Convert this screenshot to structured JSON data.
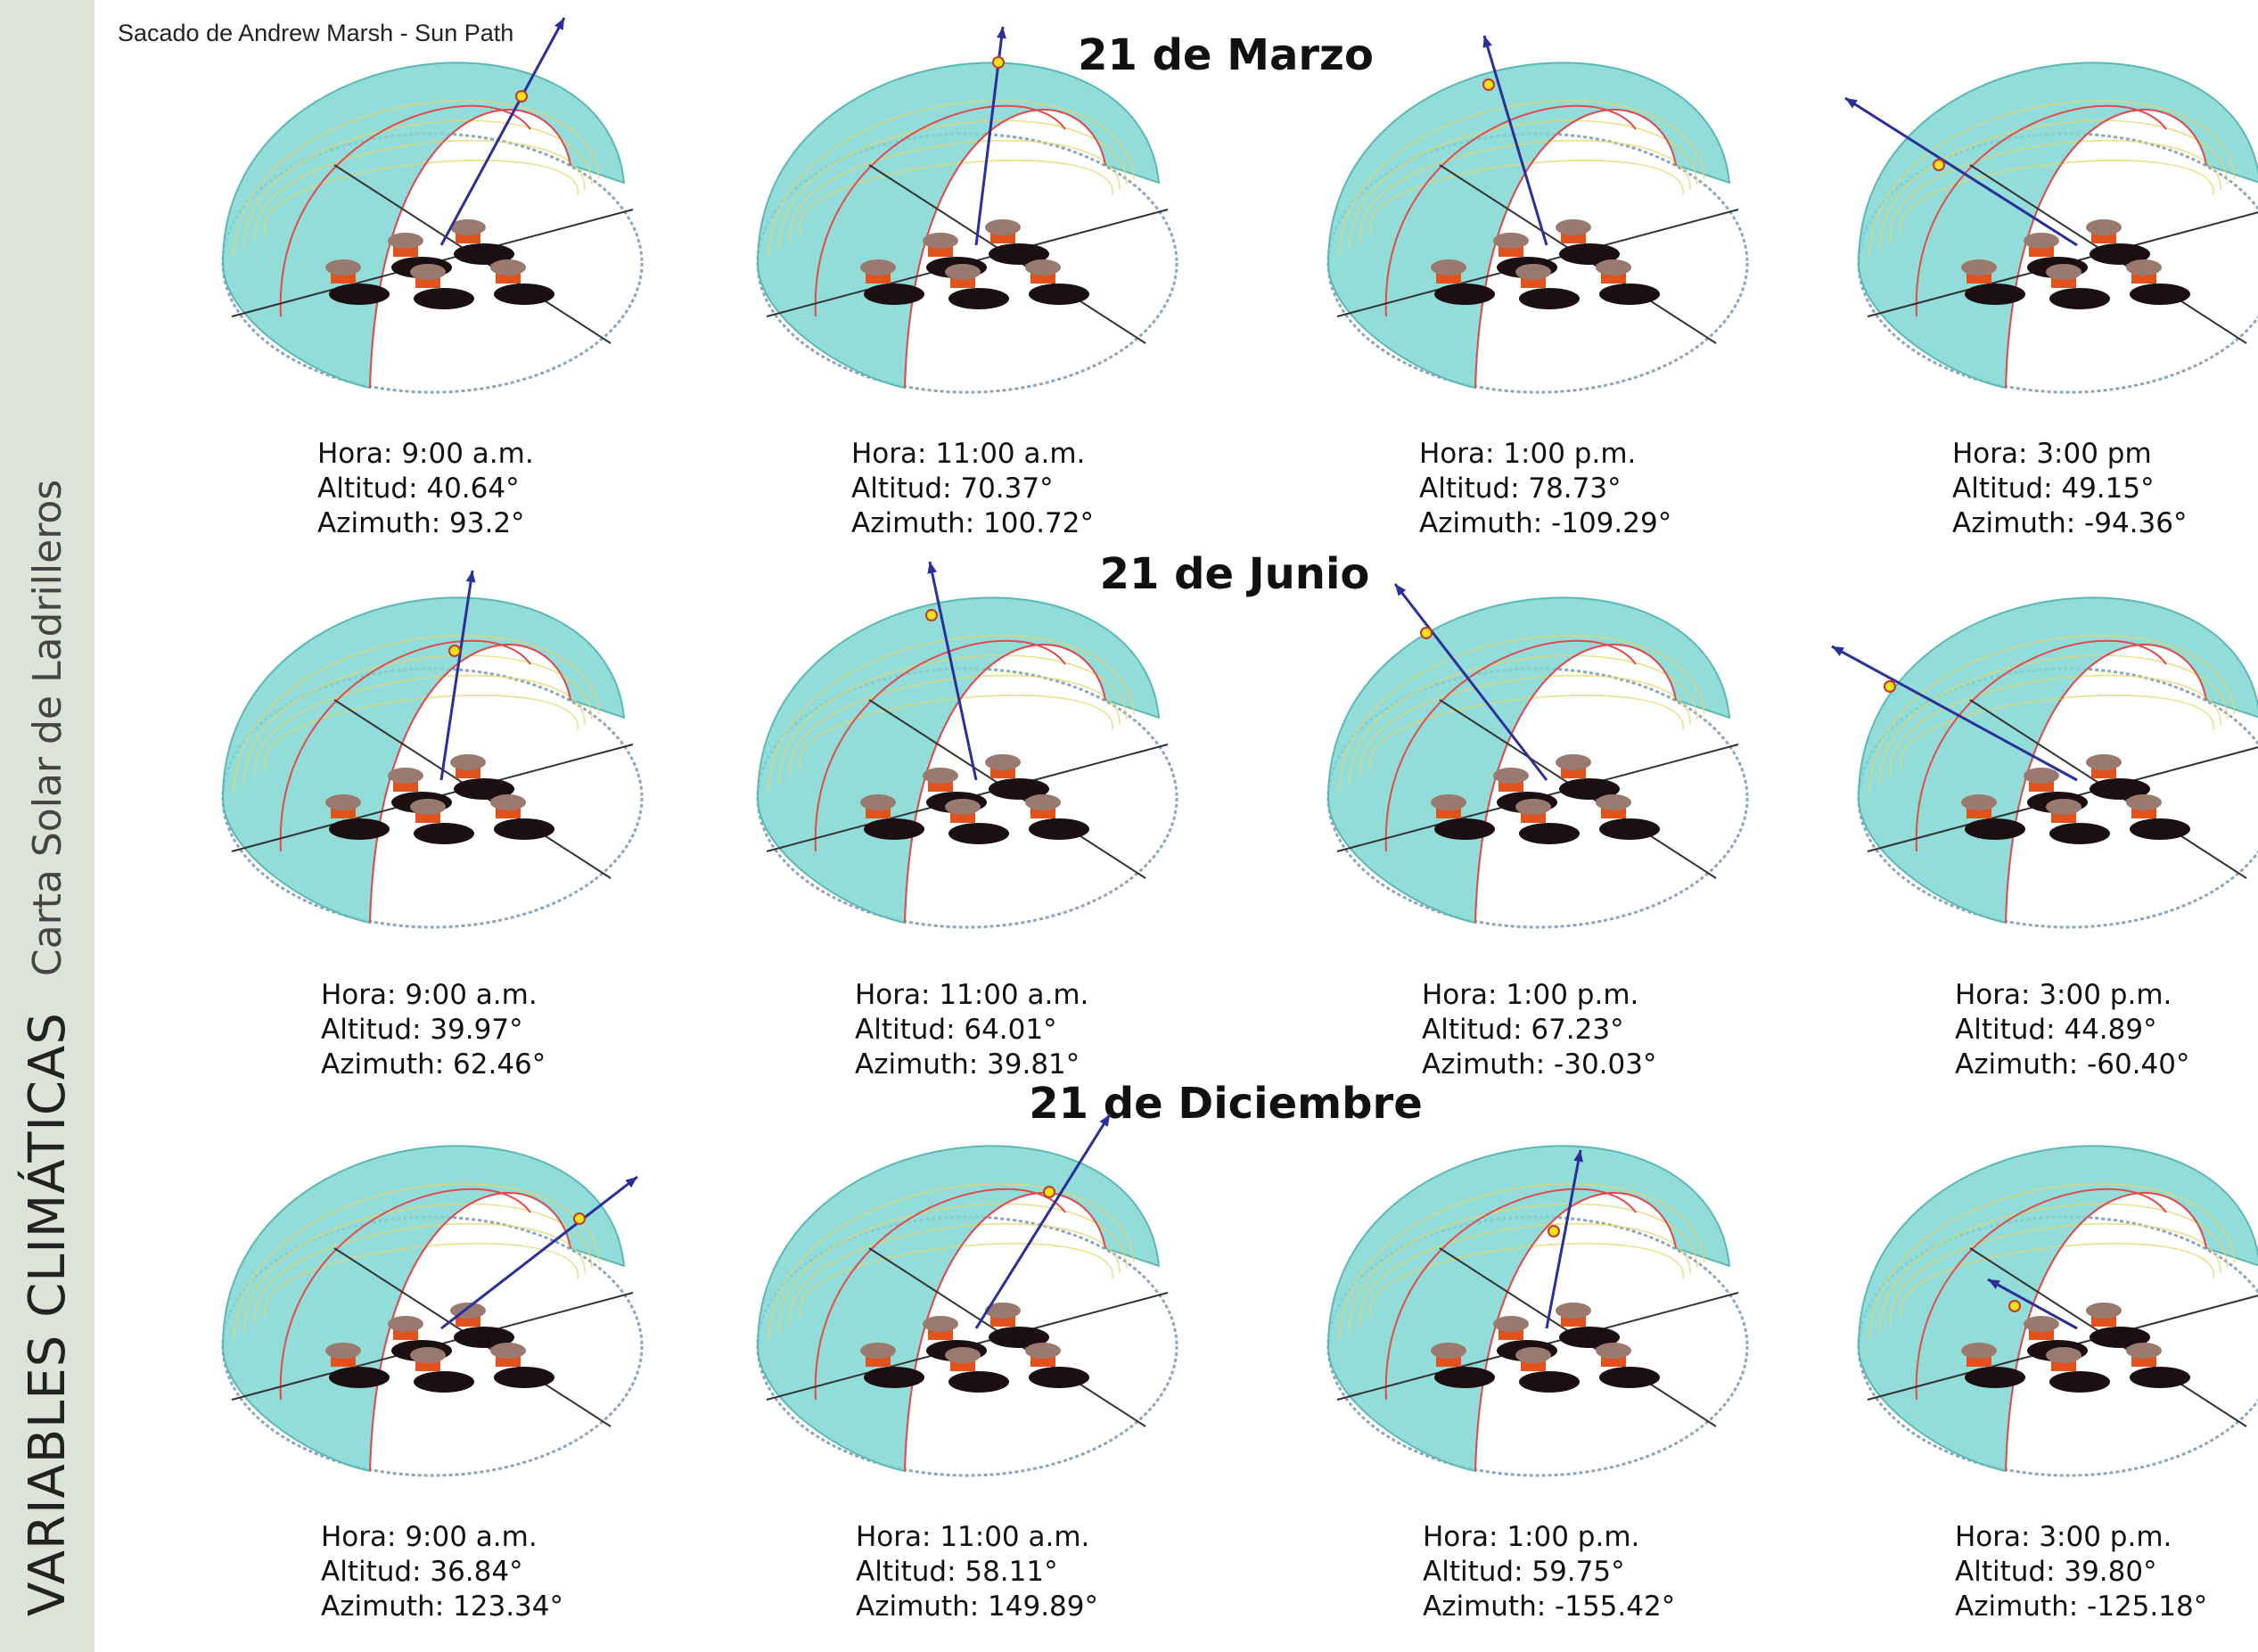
{
  "sidebar": {
    "title": "VARIABLES CLIMÁTICAS",
    "subtitle": "Carta Solar de Ladrilleros"
  },
  "source_note": "Sacado de Andrew Marsh - Sun Path",
  "dates": [
    {
      "title": "21 de Marzo",
      "panels": [
        {
          "hora": "Hora: 9:00 a.m.",
          "altitud": "Altitud: 40.64°",
          "azimuth": "Azimuth: 93.2°"
        },
        {
          "hora": "Hora: 11:00 a.m.",
          "altitud": "Altitud: 70.37°",
          "azimuth": "Azimuth: 100.72°"
        },
        {
          "hora": "Hora: 1:00 p.m.",
          "altitud": "Altitud: 78.73°",
          "azimuth": "Azimuth: -109.29°"
        },
        {
          "hora": "Hora: 3:00 pm",
          "altitud": "Altitud: 49.15°",
          "azimuth": "Azimuth: -94.36°"
        }
      ]
    },
    {
      "title": "21 de Junio",
      "panels": [
        {
          "hora": "Hora: 9:00 a.m.",
          "altitud": "Altitud: 39.97°",
          "azimuth": "Azimuth: 62.46°"
        },
        {
          "hora": "Hora: 11:00 a.m.",
          "altitud": "Altitud: 64.01°",
          "azimuth": "Azimuth: 39.81°"
        },
        {
          "hora": "Hora: 1:00 p.m.",
          "altitud": "Altitud: 67.23°",
          "azimuth": "Azimuth: -30.03°"
        },
        {
          "hora": "Hora: 3:00 p.m.",
          "altitud": "Altitud: 44.89°",
          "azimuth": "Azimuth: -60.40°"
        }
      ]
    },
    {
      "title": "21 de Diciembre",
      "panels": [
        {
          "hora": "Hora: 9:00 a.m.",
          "altitud": "Altitud: 36.84°",
          "azimuth": "Azimuth: 123.34°"
        },
        {
          "hora": "Hora: 11:00 a.m.",
          "altitud": "Altitud: 58.11°",
          "azimuth": "Azimuth: 149.89°"
        },
        {
          "hora": "Hora: 1:00 p.m.",
          "altitud": "Altitud: 59.75°",
          "azimuth": "Azimuth: -155.42°"
        },
        {
          "hora": "Hora: 3:00 p.m.",
          "altitud": "Altitud: 39.80°",
          "azimuth": "Azimuth: -125.18°"
        }
      ]
    }
  ],
  "colors": {
    "dome": "#7fd6d2",
    "dome_stroke": "#5cb8b4",
    "analemma": "#e34a4a",
    "path_yellow": "#e7d46a",
    "sun_vector": "#2a2f9a",
    "sun_marker": "#f3e21a",
    "roof": "#9a7a6e",
    "walls": "#e2521c",
    "shadow": "#1b0f12"
  }
}
